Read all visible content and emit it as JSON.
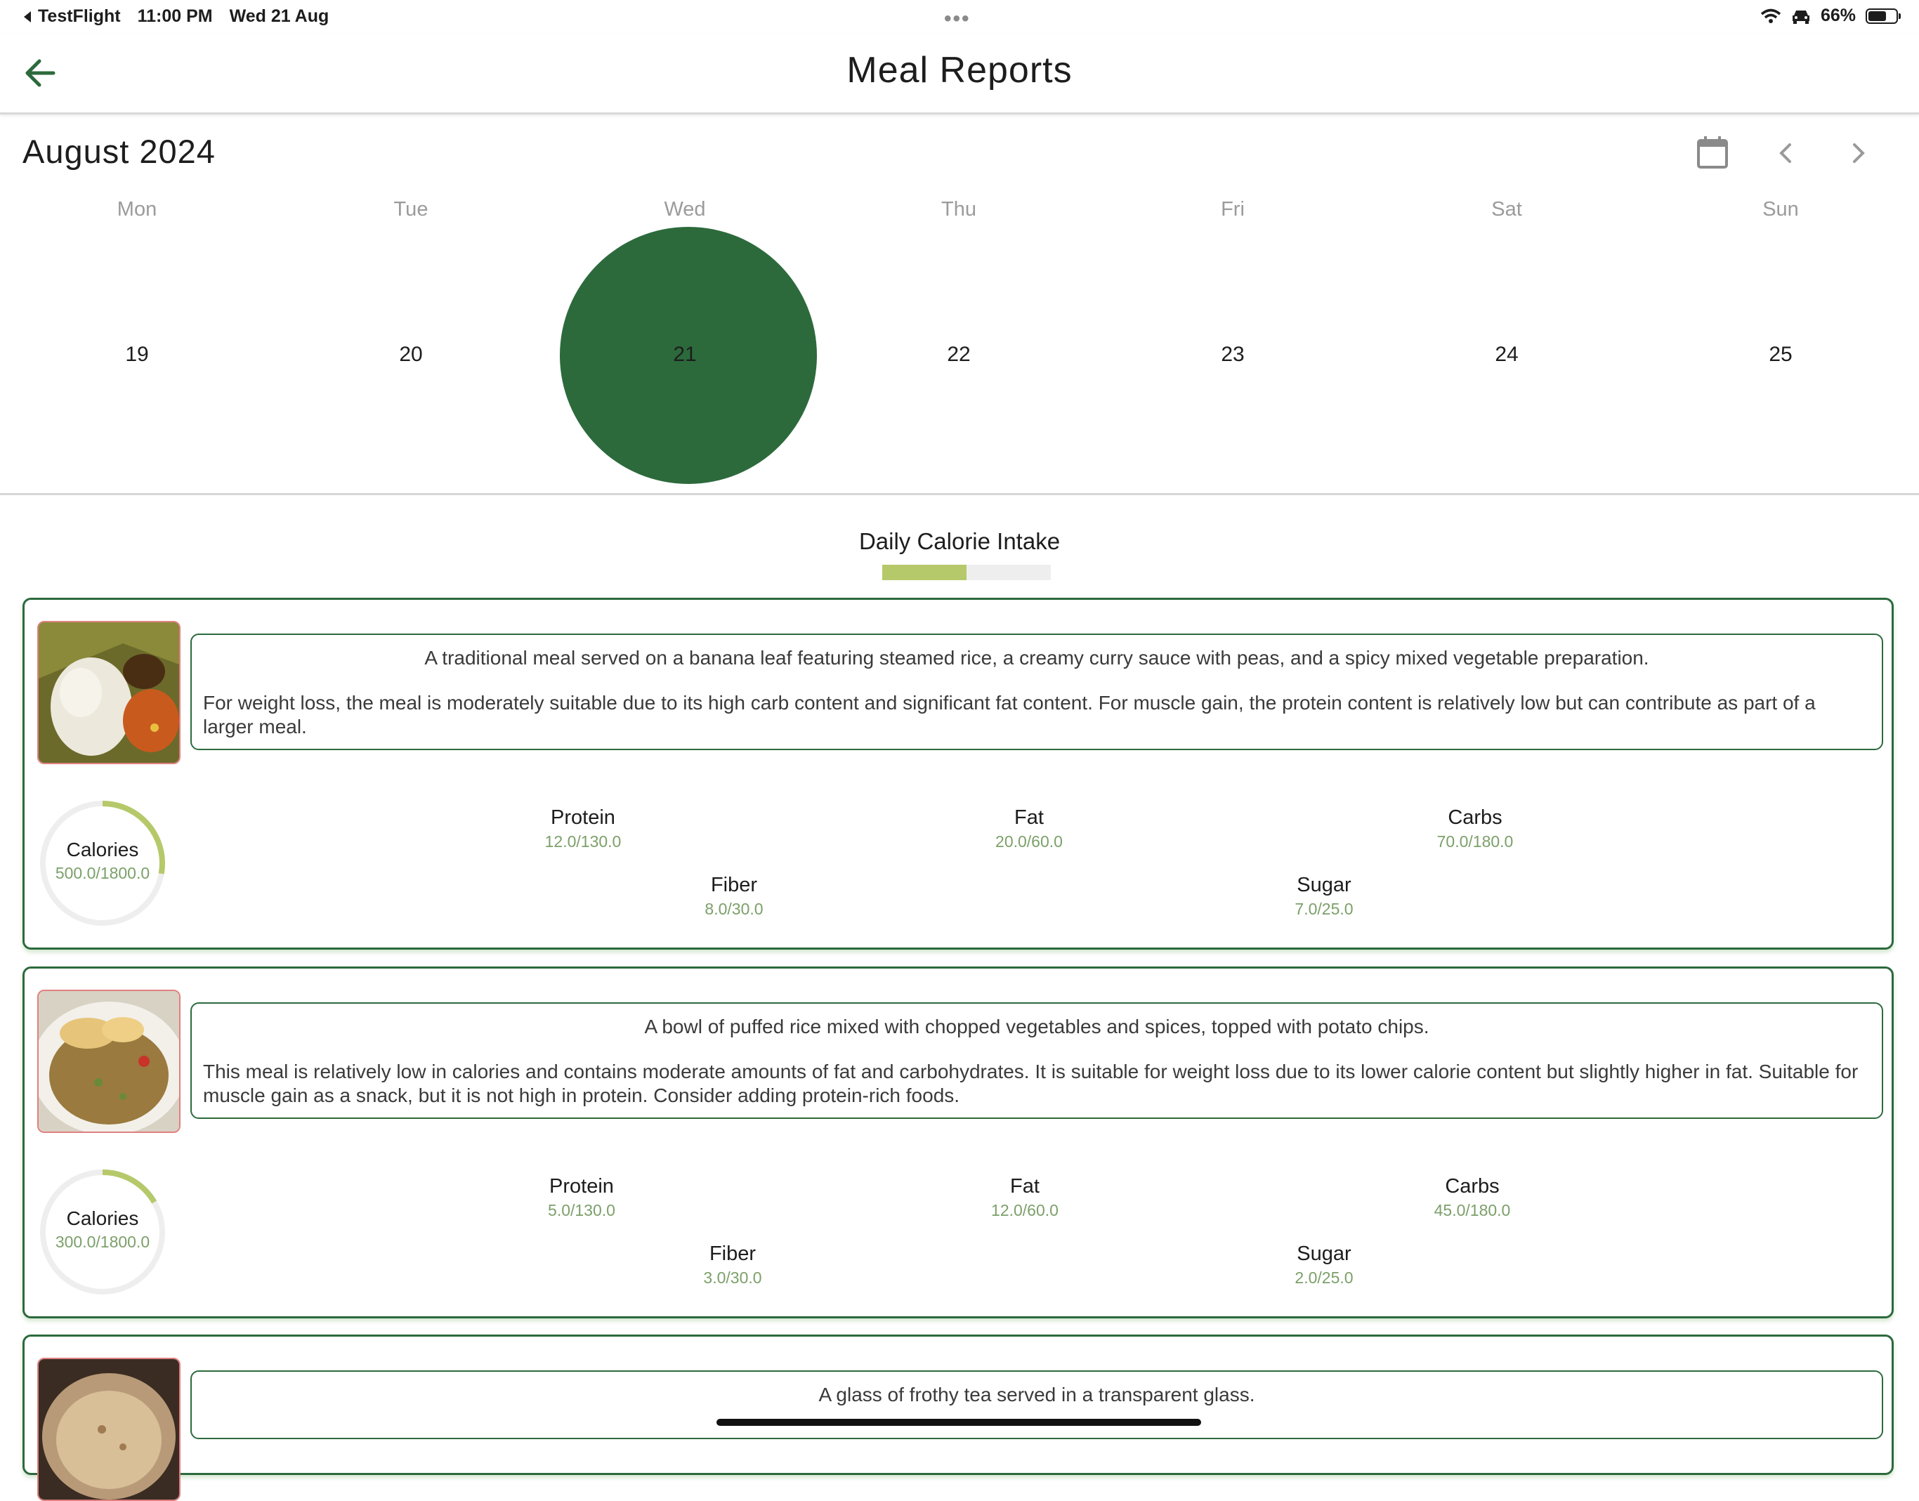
{
  "status": {
    "back_app": "TestFlight",
    "time": "11:00 PM",
    "date": "Wed 21 Aug",
    "battery": "66%",
    "battery_fraction": 0.66
  },
  "appbar": {
    "title": "Meal Reports"
  },
  "calendar": {
    "month": "August 2024",
    "weekdays": [
      "Mon",
      "Tue",
      "Wed",
      "Thu",
      "Fri",
      "Sat",
      "Sun"
    ],
    "days": [
      "19",
      "20",
      "21",
      "22",
      "23",
      "24",
      "25"
    ],
    "selected_index": 2
  },
  "daily": {
    "title": "Daily Calorie Intake",
    "progress": 0.5
  },
  "meals": [
    {
      "description": "A traditional meal served on a banana leaf featuring steamed rice, a creamy curry sauce with peas, and a spicy mixed vegetable preparation.",
      "advice": "For weight loss, the meal is moderately suitable due to its high carb content and significant fat content. For muscle gain, the protein content is relatively low but can contribute as part of a larger meal.",
      "calories_label": "Calories",
      "calories": "500.0/1800.0",
      "calories_fraction": 0.2778,
      "protein_label": "Protein",
      "protein": "12.0/130.0",
      "fat_label": "Fat",
      "fat": "20.0/60.0",
      "carbs_label": "Carbs",
      "carbs": "70.0/180.0",
      "fiber_label": "Fiber",
      "fiber": "8.0/30.0",
      "sugar_label": "Sugar",
      "sugar": "7.0/25.0"
    },
    {
      "description": "A bowl of puffed rice mixed with chopped vegetables and spices, topped with potato chips.",
      "advice": "This meal is relatively low in calories and contains moderate amounts of fat and carbohydrates. It is suitable for weight loss due to its lower calorie content but slightly higher in fat. Suitable for muscle gain as a snack, but it is not high in protein. Consider adding protein-rich foods.",
      "calories_label": "Calories",
      "calories": "300.0/1800.0",
      "calories_fraction": 0.1667,
      "protein_label": "Protein",
      "protein": "5.0/130.0",
      "fat_label": "Fat",
      "fat": "12.0/60.0",
      "carbs_label": "Carbs",
      "carbs": "45.0/180.0",
      "fiber_label": "Fiber",
      "fiber": "3.0/30.0",
      "sugar_label": "Sugar",
      "sugar": "2.0/25.0"
    },
    {
      "description": "A glass of frothy tea served in a transparent glass."
    }
  ],
  "colors": {
    "accent": "#2c6a3c",
    "progress": "#b5c96a",
    "value_text": "#7ca06a"
  },
  "icons": [
    "back-arrow-icon",
    "calendar-icon",
    "chevron-left-icon",
    "chevron-right-icon",
    "wifi-icon",
    "car-icon",
    "battery-icon"
  ]
}
